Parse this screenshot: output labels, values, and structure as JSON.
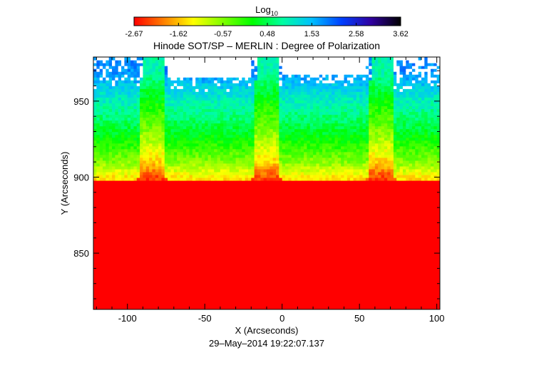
{
  "chart_data": {
    "type": "heatmap",
    "title": "Hinode SOT/SP – MERLIN : Degree of Polarization",
    "xlabel": "X (Arcseconds)",
    "ylabel": "Y (Arcseconds)",
    "timestamp": "29–May–2014 19:22:07.137",
    "colorbar": {
      "label_main": "Log",
      "label_sub": "10",
      "ticks": [
        "-2.67",
        "-1.62",
        "-0.57",
        "0.48",
        "1.53",
        "2.58",
        "3.62"
      ],
      "min": -2.67,
      "max": 3.62,
      "colormap": [
        "#ff0000",
        "#ff8000",
        "#ffff00",
        "#80ff00",
        "#00ff00",
        "#00ffa0",
        "#00c0ff",
        "#0040ff",
        "#3000a0",
        "#000000"
      ]
    },
    "xlim": [
      -122,
      102
    ],
    "ylim": [
      813,
      979
    ],
    "xticks": [
      {
        "value": -100,
        "label": "-100"
      },
      {
        "value": -50,
        "label": "-50"
      },
      {
        "value": 0,
        "label": "0"
      },
      {
        "value": 50,
        "label": "50"
      },
      {
        "value": 100,
        "label": "100"
      }
    ],
    "yticks": [
      {
        "value": 850,
        "label": "850"
      },
      {
        "value": 900,
        "label": "900"
      },
      {
        "value": 950,
        "label": "950"
      }
    ],
    "limb_y": 897,
    "no_data_color": "#ffffff",
    "slit_columns": [
      {
        "x_start": -93,
        "x_end": -75
      },
      {
        "x_start": -19,
        "x_end": -1
      },
      {
        "x_start": 55,
        "x_end": 73
      }
    ],
    "missing_regions": [
      {
        "x_start": -74,
        "x_end": -20,
        "y_min": 966
      },
      {
        "x_start": 0,
        "x_end": 54,
        "y_min": 968
      }
    ],
    "approx_log_values": [
      {
        "y": 970,
        "value": 1.8
      },
      {
        "y": 950,
        "value": 1.0
      },
      {
        "y": 930,
        "value": 0.3
      },
      {
        "y": 910,
        "value": -0.6
      },
      {
        "y": 900,
        "value": -1.4
      },
      {
        "y": 850,
        "value": -2.67
      }
    ]
  }
}
